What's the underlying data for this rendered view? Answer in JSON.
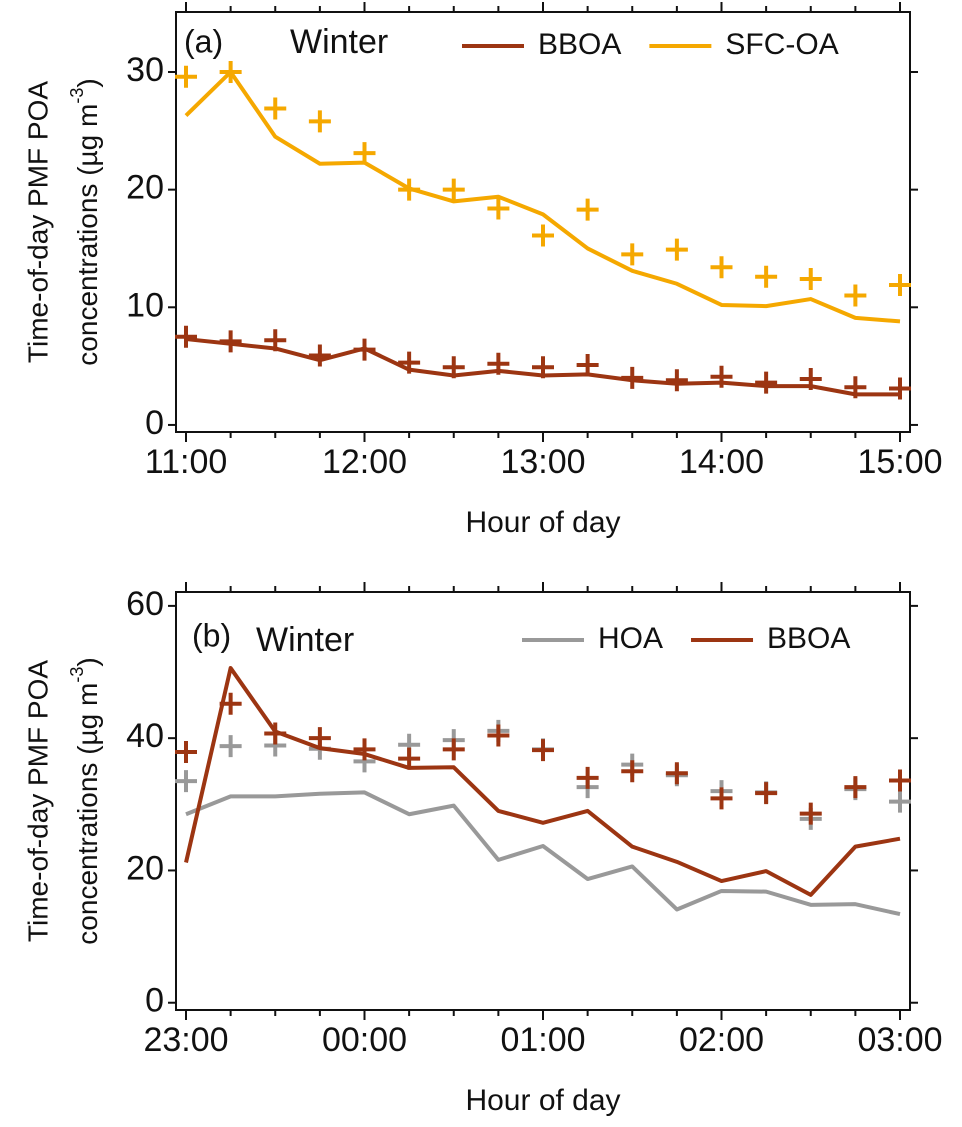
{
  "chart_data": [
    {
      "type": "line",
      "annotations": [
        "(a)",
        "Winter"
      ],
      "xlabel": "Hour of day",
      "ylabel": "Time-of-day PMF POA",
      "ylabel2": "concentrations (µg m",
      "ylabel_sup": "-3",
      "ylabel_end": ")",
      "categories": [
        "11:00",
        null,
        null,
        null,
        "12:00",
        null,
        null,
        null,
        "13:00",
        null,
        null,
        null,
        "14:00",
        null,
        null,
        null,
        "15:00"
      ],
      "ylim": [
        -0.6,
        35.1
      ],
      "yticks": [
        0,
        10,
        20,
        30
      ],
      "legend": "top-right",
      "series": [
        {
          "name": "BBOA",
          "color": "#9c3512",
          "values": [
            7.3,
            6.9,
            6.5,
            5.5,
            6.5,
            4.7,
            4.2,
            4.6,
            4.2,
            4.3,
            3.8,
            3.5,
            3.6,
            3.3,
            3.3,
            2.6,
            2.6
          ],
          "points": [
            7.5,
            7.1,
            7.2,
            5.9,
            6.4,
            5.3,
            4.9,
            5.2,
            4.9,
            5.1,
            4.0,
            3.8,
            4.1,
            3.6,
            3.9,
            3.2,
            3.1
          ]
        },
        {
          "name": "SFC-OA",
          "color": "#f5a800",
          "values": [
            26.3,
            30.0,
            24.5,
            22.2,
            22.3,
            20.1,
            19.0,
            19.4,
            17.9,
            15.0,
            13.1,
            12.0,
            10.2,
            10.1,
            10.7,
            9.1,
            8.8
          ],
          "points": [
            29.6,
            30.0,
            26.9,
            25.8,
            23.1,
            20.0,
            20.0,
            18.4,
            16.1,
            18.3,
            14.5,
            14.9,
            13.4,
            12.6,
            12.4,
            11.0,
            11.9
          ]
        }
      ]
    },
    {
      "type": "line",
      "annotations": [
        "(b)",
        "Winter"
      ],
      "xlabel": "Hour of day",
      "ylabel": "Time-of-day PMF POA",
      "ylabel2": "concentrations (µg m",
      "ylabel_sup": "-3",
      "ylabel_end": ")",
      "categories": [
        "23:00",
        null,
        null,
        null,
        "00:00",
        null,
        null,
        null,
        "01:00",
        null,
        null,
        null,
        "02:00",
        null,
        null,
        null,
        "03:00"
      ],
      "ylim": [
        -1.1,
        62.1
      ],
      "yticks": [
        0,
        20,
        40,
        60
      ],
      "legend": "top-right",
      "series": [
        {
          "name": "HOA",
          "color": "#999999",
          "values": [
            28.5,
            31.2,
            31.2,
            31.6,
            31.8,
            28.5,
            29.8,
            21.6,
            23.7,
            18.7,
            20.6,
            14.1,
            16.9,
            16.8,
            14.8,
            14.9,
            13.4
          ],
          "points": [
            33.5,
            38.8,
            38.9,
            38.4,
            36.5,
            39.0,
            39.7,
            41.1,
            38.3,
            32.6,
            36.0,
            34.4,
            32.0,
            31.8,
            27.8,
            32.3,
            30.4
          ]
        },
        {
          "name": "BBOA",
          "color": "#9c3512",
          "values": [
            21.2,
            50.6,
            41.0,
            38.5,
            37.6,
            35.5,
            35.6,
            29.0,
            27.2,
            29.0,
            23.6,
            21.3,
            18.4,
            19.9,
            16.3,
            23.6,
            24.8
          ],
          "points": [
            37.9,
            45.2,
            40.7,
            40.0,
            38.3,
            36.9,
            38.3,
            40.4,
            38.2,
            34.0,
            35.0,
            34.7,
            30.9,
            31.7,
            28.6,
            32.6,
            33.6
          ]
        }
      ]
    }
  ]
}
